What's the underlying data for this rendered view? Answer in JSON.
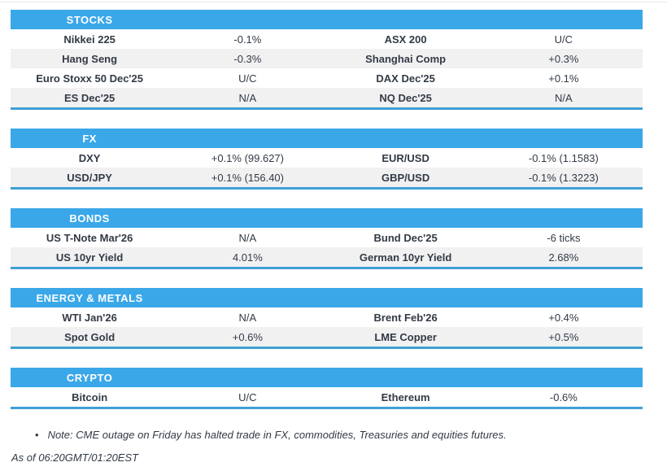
{
  "sections": [
    {
      "title": "STOCKS",
      "rows": [
        [
          "Nikkei 225",
          "-0.1%",
          "ASX 200",
          "U/C"
        ],
        [
          "Hang Seng",
          "-0.3%",
          "Shanghai Comp",
          "+0.3%"
        ],
        [
          "Euro Stoxx 50 Dec'25",
          "U/C",
          "DAX Dec'25",
          "+0.1%"
        ],
        [
          "ES Dec'25",
          "N/A",
          "NQ Dec'25",
          "N/A"
        ]
      ]
    },
    {
      "title": "FX",
      "rows": [
        [
          "DXY",
          "+0.1% (99.627)",
          "EUR/USD",
          "-0.1% (1.1583)"
        ],
        [
          "USD/JPY",
          "+0.1% (156.40)",
          "GBP/USD",
          "-0.1% (1.3223)"
        ]
      ]
    },
    {
      "title": "BONDS",
      "rows": [
        [
          "US T-Note Mar'26",
          "N/A",
          "Bund Dec'25",
          "-6 ticks"
        ],
        [
          "US 10yr Yield",
          "4.01%",
          "German 10yr Yield",
          "2.68%"
        ]
      ]
    },
    {
      "title": "ENERGY & METALS",
      "rows": [
        [
          "WTI Jan'26",
          "N/A",
          "Brent Feb'26",
          "+0.4%"
        ],
        [
          "Spot Gold",
          "+0.6%",
          "LME Copper",
          "+0.5%"
        ]
      ]
    },
    {
      "title": "CRYPTO",
      "rows": [
        [
          "Bitcoin",
          "U/C",
          "Ethereum",
          "-0.6%"
        ]
      ]
    }
  ],
  "note": {
    "bullet": "•",
    "text": "Note: CME outage on Friday has halted trade in FX, commodities, Treasuries and equities futures."
  },
  "as_of": "As of 06:20GMT/01:20EST",
  "colors": {
    "header_blue": "#3aa7e8",
    "border_blue": "#3f9fd4",
    "row_alt": "#f1f1f2",
    "text": "#323a45"
  }
}
